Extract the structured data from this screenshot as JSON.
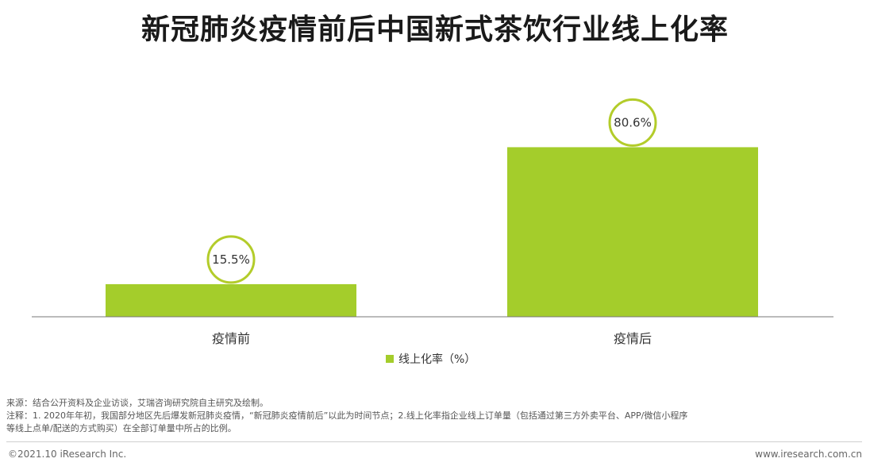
{
  "title": "新冠肺炎疫情前后中国新式茶饮行业线上化率",
  "colors": {
    "bar": "#a4cd2b",
    "circle": "#b3cc2a",
    "axis": "#777777"
  },
  "chart_data": {
    "type": "bar",
    "title": "新冠肺炎疫情前后中国新式茶饮行业线上化率",
    "categories": [
      "疫情前",
      "疫情后"
    ],
    "series": [
      {
        "name": "线上化率（%）",
        "values": [
          15.5,
          80.6
        ]
      }
    ],
    "data_labels": [
      "15.5%",
      "80.6%"
    ],
    "ylim": [
      0,
      100
    ],
    "grid": false,
    "legend_position": "bottom"
  },
  "legend": {
    "label": "线上化率（%）"
  },
  "notes": {
    "source": "来源：结合公开资料及企业访谈，艾瑞咨询研究院自主研究及绘制。",
    "note1": "注释：1. 2020年年初，我国部分地区先后爆发新冠肺炎疫情，“新冠肺炎疫情前后”以此为时间节点；2.线上化率指企业线上订单量（包括通过第三方外卖平台、APP/微信小程序",
    "note2": "等线上点单/配送的方式购买）在全部订单量中所占的比例。"
  },
  "footer": {
    "copyright": "©2021.10 iResearch Inc.",
    "website": "www.iresearch.com.cn"
  }
}
